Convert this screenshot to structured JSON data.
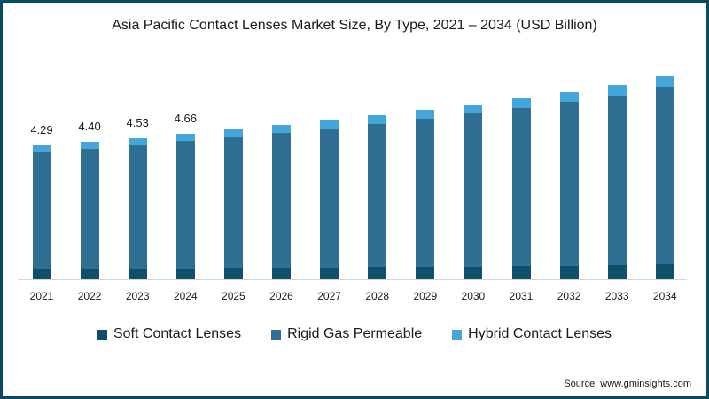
{
  "title": "Asia Pacific Contact Lenses Market Size, By Type, 2021 – 2034 (USD Billion)",
  "source": "Source: www.gminsights.com",
  "colors": {
    "soft": "#0f4f6b",
    "rigid": "#2e6f92",
    "hybrid": "#43a7dc",
    "frame": "#0b4a63"
  },
  "legend": [
    {
      "label": "Soft Contact Lenses",
      "color": "#0f4f6b"
    },
    {
      "label": "Rigid Gas Permeable",
      "color": "#2e6f92"
    },
    {
      "label": "Hybrid Contact Lenses",
      "color": "#43a7dc"
    }
  ],
  "chart_data": {
    "type": "bar",
    "stacked": true,
    "title": "Asia Pacific Contact Lenses Market Size, By Type, 2021 – 2034 (USD Billion)",
    "xlabel": "",
    "ylabel": "",
    "grid": false,
    "legend_position": "bottom",
    "categories": [
      "2021",
      "2022",
      "2023",
      "2024",
      "2025",
      "2026",
      "2027",
      "2028",
      "2029",
      "2030",
      "2031",
      "2032",
      "2033",
      "2034"
    ],
    "totals": [
      4.29,
      4.4,
      4.53,
      4.66,
      4.8,
      4.95,
      5.1,
      5.26,
      5.43,
      5.61,
      5.8,
      6.0,
      6.21,
      6.5
    ],
    "data_labels": [
      "4.29",
      "4.40",
      "4.53",
      "4.66",
      "",
      "",
      "",
      "",
      "",
      "",
      "",
      "",
      "",
      ""
    ],
    "series": [
      {
        "name": "Soft Contact Lenses",
        "values": [
          0.33,
          0.33,
          0.34,
          0.35,
          0.36,
          0.37,
          0.38,
          0.39,
          0.4,
          0.41,
          0.42,
          0.43,
          0.45,
          0.47
        ]
      },
      {
        "name": "Rigid Gas Permeable",
        "values": [
          3.76,
          3.85,
          3.96,
          4.07,
          4.19,
          4.32,
          4.45,
          4.59,
          4.74,
          4.9,
          5.07,
          5.25,
          5.43,
          5.69
        ]
      },
      {
        "name": "Hybrid Contact Lenses",
        "values": [
          0.2,
          0.22,
          0.23,
          0.24,
          0.25,
          0.26,
          0.27,
          0.28,
          0.29,
          0.3,
          0.31,
          0.32,
          0.33,
          0.34
        ]
      }
    ],
    "ylim": [
      0,
      7
    ]
  }
}
